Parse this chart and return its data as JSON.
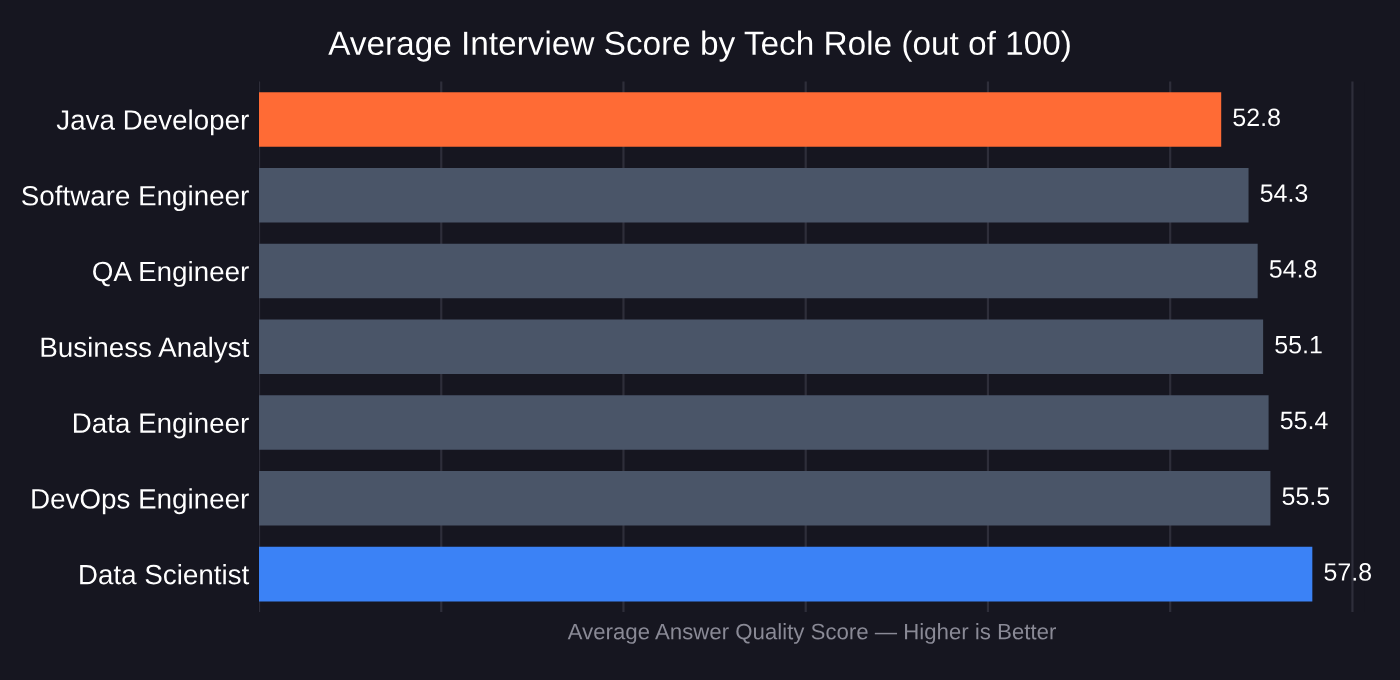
{
  "chart_data": {
    "type": "bar",
    "orientation": "horizontal",
    "title": "Average Interview Score by Tech Role (out of 100)",
    "xlabel": "Average Answer Quality Score — Higher is Better",
    "categories": [
      "Java Developer",
      "Software Engineer",
      "QA Engineer",
      "Business Analyst",
      "Data Engineer",
      "DevOps Engineer",
      "Data Scientist"
    ],
    "values": [
      52.8,
      54.3,
      54.8,
      55.1,
      55.4,
      55.5,
      57.8
    ],
    "colors": [
      "#ff6b35",
      "#4a5568",
      "#4a5568",
      "#4a5568",
      "#4a5568",
      "#4a5568",
      "#3b82f6"
    ],
    "tick_labels": "y",
    "grid": "x",
    "data_labels": true
  }
}
